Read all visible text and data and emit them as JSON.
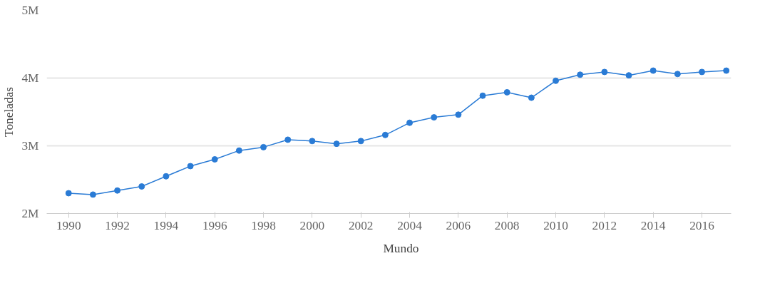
{
  "chart_data": {
    "type": "line",
    "ylabel": "Toneladas",
    "x": [
      1990,
      1991,
      1992,
      1993,
      1994,
      1995,
      1996,
      1997,
      1998,
      1999,
      2000,
      2001,
      2002,
      2003,
      2004,
      2005,
      2006,
      2007,
      2008,
      2009,
      2010,
      2011,
      2012,
      2013,
      2014,
      2015,
      2016,
      2017
    ],
    "series": [
      {
        "name": "Mundo",
        "color": "#2a7bd5",
        "values": [
          2300000,
          2280000,
          2340000,
          2400000,
          2550000,
          2700000,
          2800000,
          2930000,
          2980000,
          3090000,
          3070000,
          3030000,
          3070000,
          3160000,
          3340000,
          3420000,
          3460000,
          3740000,
          3790000,
          3710000,
          3960000,
          4050000,
          4090000,
          4040000,
          4110000,
          4060000,
          4090000,
          4110000
        ]
      }
    ],
    "xlim": [
      1989.1,
      2017.2
    ],
    "ylim": [
      2000000,
      5000000
    ],
    "xticks": [
      1990,
      1992,
      1994,
      1996,
      1998,
      2000,
      2002,
      2004,
      2006,
      2008,
      2010,
      2012,
      2014,
      2016
    ],
    "yticks": [
      {
        "value": 2000000,
        "label": "2M"
      },
      {
        "value": 3000000,
        "label": "3M"
      },
      {
        "value": 4000000,
        "label": "4M"
      },
      {
        "value": 5000000,
        "label": "5M"
      }
    ],
    "grid": "y",
    "legend": "bottom",
    "marker": "circle",
    "line_style": "solid"
  }
}
